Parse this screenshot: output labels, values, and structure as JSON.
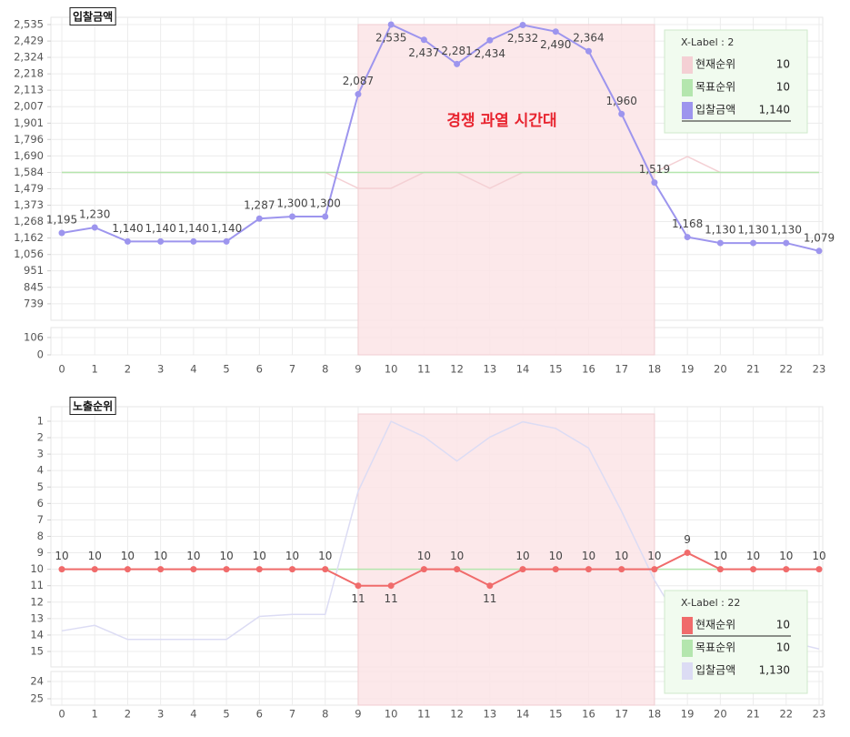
{
  "chart_data": [
    {
      "type": "line",
      "title": "입찰금액",
      "x": [
        0,
        1,
        2,
        3,
        4,
        5,
        6,
        7,
        8,
        9,
        10,
        11,
        12,
        13,
        14,
        15,
        16,
        17,
        18,
        19,
        20,
        21,
        22,
        23
      ],
      "xlim": [
        0,
        23
      ],
      "xticks": [
        0,
        1,
        2,
        3,
        4,
        5,
        6,
        7,
        8,
        9,
        10,
        11,
        12,
        13,
        14,
        15,
        16,
        17,
        18,
        19,
        20,
        21,
        22,
        23
      ],
      "ylim": [
        633,
        2535
      ],
      "yticks": [
        739,
        845,
        951,
        {
          "value": 1056,
          "label": "1,056"
        },
        {
          "value": 1162,
          "label": "1,162"
        },
        {
          "value": 1268,
          "label": "1,268"
        },
        {
          "value": 1373,
          "label": "1,373"
        },
        {
          "value": 1479,
          "label": "1,479"
        },
        {
          "value": 1584,
          "label": "1,584"
        },
        {
          "value": 1690,
          "label": "1,690"
        },
        {
          "value": 1796,
          "label": "1,796"
        },
        {
          "value": 1901,
          "label": "1,901"
        },
        {
          "value": 2007,
          "label": "2,007"
        },
        {
          "value": 2113,
          "label": "2,113"
        },
        {
          "value": 2218,
          "label": "2,218"
        },
        {
          "value": 2324,
          "label": "2,324"
        },
        {
          "value": 2429,
          "label": "2,429"
        },
        {
          "value": 2535,
          "label": "2,535"
        }
      ],
      "lower_ylim": [
        0,
        167
      ],
      "lower_yticks": [
        0,
        106
      ],
      "y2lim": [
        19.3,
        0.7
      ],
      "grid": true,
      "highlight": {
        "x": [
          9,
          18
        ],
        "color": "#fbe4e6",
        "label": "경쟁 과열 시간대"
      },
      "series": [
        {
          "name": "현재순위",
          "color": "#f4d0d4",
          "axis": "y2",
          "values": [
            10,
            10,
            10,
            10,
            10,
            10,
            10,
            10,
            10,
            11,
            11,
            10,
            10,
            11,
            10,
            10,
            10,
            10,
            10,
            9,
            10,
            10,
            10,
            10
          ]
        },
        {
          "name": "목표순위",
          "color": "#b4e6ae",
          "axis": "y2",
          "values": [
            10,
            10,
            10,
            10,
            10,
            10,
            10,
            10,
            10,
            10,
            10,
            10,
            10,
            10,
            10,
            10,
            10,
            10,
            10,
            10,
            10,
            10,
            10,
            10
          ]
        },
        {
          "name": "입찰금액",
          "color": "#9d95ee",
          "markers": true,
          "values": [
            1195,
            1230,
            1140,
            1140,
            1140,
            1140,
            1287,
            1300,
            1300,
            2087,
            2535,
            2437,
            2281,
            2434,
            2532,
            2490,
            2364,
            1960,
            1519,
            1168,
            1130,
            1130,
            1130,
            1079
          ],
          "value_labels": [
            "1,195",
            "1,230",
            "1,140",
            "1,140",
            "1,140",
            "1,140",
            "1,287",
            "1,300",
            "1,300",
            "2,087",
            "2,535",
            "2,437",
            "2,281",
            "2,434",
            "2,532",
            "2,490",
            "2,364",
            "1,960",
            "1,519",
            "1,168",
            "1,130",
            "1,130",
            "1,130",
            "1,079"
          ]
        }
      ],
      "legend": {
        "title": "X-Label : 2",
        "values": [
          10,
          10,
          {
            "value": 1140,
            "label": "1,140"
          }
        ],
        "active": 2
      }
    },
    {
      "type": "line",
      "title": "노출순위",
      "x": [
        0,
        1,
        2,
        3,
        4,
        5,
        6,
        7,
        8,
        9,
        10,
        11,
        12,
        13,
        14,
        15,
        16,
        17,
        18,
        19,
        20,
        21,
        22,
        23
      ],
      "xlim": [
        0,
        23
      ],
      "xticks": [
        0,
        1,
        2,
        3,
        4,
        5,
        6,
        7,
        8,
        9,
        10,
        11,
        12,
        13,
        14,
        15,
        16,
        17,
        18,
        19,
        20,
        21,
        22,
        23
      ],
      "ylim": [
        15.94,
        0.56
      ],
      "yticks": [
        1,
        2,
        3,
        4,
        5,
        6,
        7,
        8,
        9,
        10,
        11,
        12,
        13,
        14,
        15
      ],
      "lower_ylim": [
        25.37,
        23.42
      ],
      "lower_yticks": [
        24,
        25
      ],
      "y2lim": [
        964,
        2582
      ],
      "grid": true,
      "highlight": {
        "x": [
          9,
          18
        ],
        "color": "#fbe4e6"
      },
      "series": [
        {
          "name": "현재순위",
          "color": "#f06b6b",
          "markers": true,
          "values": [
            10,
            10,
            10,
            10,
            10,
            10,
            10,
            10,
            10,
            11,
            11,
            10,
            10,
            11,
            10,
            10,
            10,
            10,
            10,
            9,
            10,
            10,
            10,
            10
          ]
        },
        {
          "name": "목표순위",
          "color": "#b4e6ae",
          "values": [
            10,
            10,
            10,
            10,
            10,
            10,
            10,
            10,
            10,
            10,
            10,
            10,
            10,
            10,
            10,
            10,
            10,
            10,
            10,
            10,
            10,
            10,
            10,
            10
          ]
        },
        {
          "name": "입찰금액",
          "color": "#dcdcf4",
          "axis": "y2",
          "values": [
            1195,
            1230,
            1140,
            1140,
            1140,
            1140,
            1287,
            1300,
            1300,
            2087,
            2535,
            2437,
            2281,
            2434,
            2532,
            2490,
            2364,
            1960,
            1519,
            1168,
            1130,
            1130,
            1130,
            1079
          ]
        }
      ],
      "legend": {
        "title": "X-Label : 22",
        "values": [
          10,
          10,
          {
            "value": 1130,
            "label": "1,130"
          }
        ],
        "active": 0
      }
    }
  ]
}
